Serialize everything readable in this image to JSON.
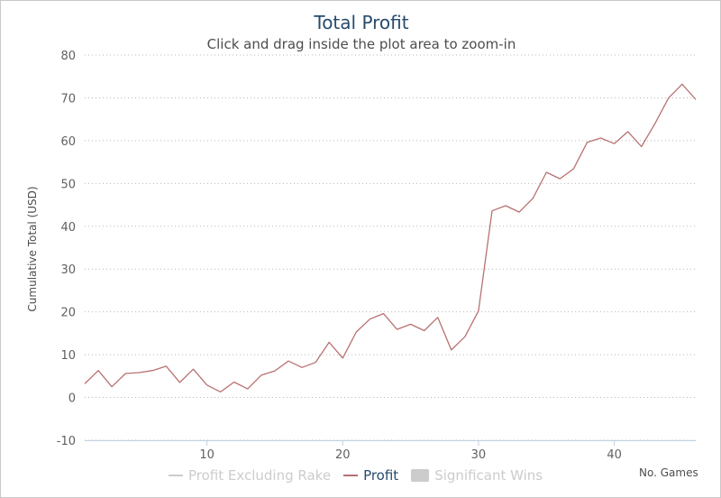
{
  "chart_data": {
    "type": "line",
    "title": "Total Profit",
    "subtitle": "Click and drag inside the plot area to zoom-in",
    "ylabel": "Cumulative Total (USD)",
    "xlabel": "No. Games",
    "ylim": [
      -10,
      80
    ],
    "xlim": [
      1,
      46
    ],
    "yticks": [
      -10,
      0,
      10,
      20,
      30,
      40,
      50,
      60,
      70,
      80
    ],
    "xticks": [
      10,
      20,
      30,
      40
    ],
    "grid": "horizontal dotted",
    "legend_position": "bottom",
    "series": [
      {
        "name": "Profit",
        "color": "#b87171",
        "x": [
          1,
          2,
          3,
          4,
          5,
          6,
          7,
          8,
          9,
          10,
          11,
          12,
          13,
          14,
          15,
          16,
          17,
          18,
          19,
          20,
          21,
          22,
          23,
          24,
          25,
          26,
          27,
          28,
          29,
          30,
          31,
          32,
          33,
          34,
          35,
          36,
          37,
          38,
          39,
          40,
          41,
          42,
          43,
          44,
          45,
          46
        ],
        "y": [
          3.2,
          6.3,
          2.5,
          5.6,
          5.8,
          6.3,
          7.3,
          3.5,
          6.6,
          2.9,
          1.3,
          3.6,
          2.0,
          5.2,
          6.2,
          8.5,
          7.0,
          8.2,
          12.9,
          9.2,
          15.3,
          18.3,
          19.6,
          15.9,
          17.1,
          15.6,
          18.7,
          11.1,
          14.2,
          20.2,
          43.6,
          44.8,
          43.3,
          46.5,
          52.6,
          51.1,
          53.4,
          59.6,
          60.6,
          59.3,
          62.1,
          58.6,
          64.0,
          70.0,
          73.2,
          69.6
        ]
      }
    ],
    "legend": [
      {
        "name": "Profit Excluding Rake",
        "kind": "line",
        "color": "#cccccc",
        "text_color": "#cccccc"
      },
      {
        "name": "Profit",
        "kind": "line",
        "color": "#b87171",
        "text_color": "#274b6d"
      },
      {
        "name": "Significant Wins",
        "kind": "area",
        "color": "#cccccc",
        "text_color": "#cccccc"
      }
    ]
  }
}
